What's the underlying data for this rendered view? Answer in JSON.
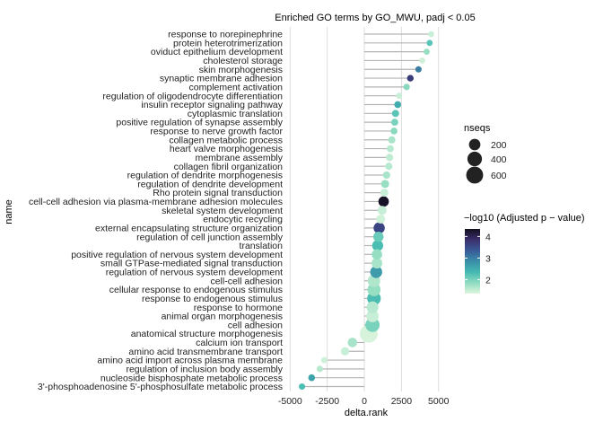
{
  "chart_data": {
    "type": "lollipop",
    "title": "Enriched GO terms by GO_MWU, padj < 0.05",
    "xlabel": "delta.rank",
    "ylabel": "name",
    "xlim": [
      -5200,
      5500
    ],
    "xticks": [
      -5000,
      -2500,
      0,
      2500,
      5000
    ],
    "xtick_labels": [
      "-5000",
      "-2500",
      "0",
      "2500",
      "5000"
    ],
    "grid": true,
    "size_legend": {
      "title": "nseqs",
      "labels": [
        "200",
        "400",
        "600"
      ],
      "values": [
        200,
        400,
        600
      ]
    },
    "color_legend": {
      "title": "−log10 (Adjusted p − value)",
      "labels": [
        "2",
        "3",
        "4"
      ],
      "values": [
        2,
        3,
        4
      ],
      "range": [
        1.35,
        4.35
      ],
      "colors": [
        "#dff5df",
        "#8fdcc0",
        "#44b9b2",
        "#3a8ea8",
        "#3a5a98",
        "#3a2f6c",
        "#140f1f"
      ]
    },
    "terms": [
      {
        "name": "response to norepinephrine",
        "x": 4500,
        "nseqs": 14,
        "neglog10p": 1.5
      },
      {
        "name": "protein heterotrimerization",
        "x": 4400,
        "nseqs": 16,
        "neglog10p": 2.2
      },
      {
        "name": "oviduct epithelium development",
        "x": 4200,
        "nseqs": 16,
        "neglog10p": 1.8
      },
      {
        "name": "cholesterol storage",
        "x": 3900,
        "nseqs": 14,
        "neglog10p": 1.45
      },
      {
        "name": "skin morphogenesis",
        "x": 3650,
        "nseqs": 20,
        "neglog10p": 3.0
      },
      {
        "name": "synaptic membrane adhesion",
        "x": 3100,
        "nseqs": 26,
        "neglog10p": 3.7
      },
      {
        "name": "complement activation",
        "x": 2850,
        "nseqs": 22,
        "neglog10p": 1.9
      },
      {
        "name": "regulation of oligodendrocyte differentiation",
        "x": 2350,
        "nseqs": 18,
        "neglog10p": 1.5
      },
      {
        "name": "insulin receptor signaling pathway",
        "x": 2250,
        "nseqs": 30,
        "neglog10p": 2.5
      },
      {
        "name": "cytoplasmic translation",
        "x": 2100,
        "nseqs": 36,
        "neglog10p": 2.2
      },
      {
        "name": "positive regulation of synapse assembly",
        "x": 2050,
        "nseqs": 34,
        "neglog10p": 2.0
      },
      {
        "name": "response to nerve growth factor",
        "x": 2000,
        "nseqs": 30,
        "neglog10p": 1.9
      },
      {
        "name": "collagen metabolic process",
        "x": 1850,
        "nseqs": 38,
        "neglog10p": 1.7
      },
      {
        "name": "heart valve morphogenesis",
        "x": 1750,
        "nseqs": 36,
        "neglog10p": 1.6
      },
      {
        "name": "membrane assembly",
        "x": 1700,
        "nseqs": 40,
        "neglog10p": 1.55
      },
      {
        "name": "collagen fibril organization",
        "x": 1650,
        "nseqs": 40,
        "neglog10p": 1.6
      },
      {
        "name": "regulation of dendrite morphogenesis",
        "x": 1500,
        "nseqs": 42,
        "neglog10p": 1.7
      },
      {
        "name": "regulation of dendrite development",
        "x": 1400,
        "nseqs": 60,
        "neglog10p": 1.8
      },
      {
        "name": "Rho protein signal transduction",
        "x": 1350,
        "nseqs": 55,
        "neglog10p": 1.5
      },
      {
        "name": "cell-cell adhesion via plasma-membrane adhesion molecules",
        "x": 1300,
        "nseqs": 150,
        "neglog10p": 4.3
      },
      {
        "name": "skeletal system development",
        "x": 1200,
        "nseqs": 90,
        "neglog10p": 1.5
      },
      {
        "name": "endocytic recycling",
        "x": 1100,
        "nseqs": 90,
        "neglog10p": 1.45
      },
      {
        "name": "external encapsulating structure organization",
        "x": 1000,
        "nseqs": 190,
        "neglog10p": 3.6
      },
      {
        "name": "regulation of cell junction assembly",
        "x": 950,
        "nseqs": 140,
        "neglog10p": 2.1
      },
      {
        "name": "translation",
        "x": 900,
        "nseqs": 180,
        "neglog10p": 2.3
      },
      {
        "name": "positive regulation of nervous system development",
        "x": 850,
        "nseqs": 150,
        "neglog10p": 1.8
      },
      {
        "name": "small GTPase-mediated signal transduction",
        "x": 850,
        "nseqs": 160,
        "neglog10p": 1.7
      },
      {
        "name": "regulation of nervous system development",
        "x": 800,
        "nseqs": 230,
        "neglog10p": 2.7
      },
      {
        "name": "cell-cell adhesion",
        "x": 650,
        "nseqs": 260,
        "neglog10p": 1.65
      },
      {
        "name": "cellular response to endogenous stimulus",
        "x": 650,
        "nseqs": 300,
        "neglog10p": 1.8
      },
      {
        "name": "response to endogenous stimulus",
        "x": 650,
        "nseqs": 330,
        "neglog10p": 2.3
      },
      {
        "name": "response to hormone",
        "x": 550,
        "nseqs": 220,
        "neglog10p": 1.6
      },
      {
        "name": "animal organ morphogenesis",
        "x": 550,
        "nseqs": 250,
        "neglog10p": 1.5
      },
      {
        "name": "cell adhesion",
        "x": 550,
        "nseqs": 380,
        "neglog10p": 2.0
      },
      {
        "name": "anatomical structure morphogenesis",
        "x": 300,
        "nseqs": 700,
        "neglog10p": 1.4
      },
      {
        "name": "calcium ion transport",
        "x": -800,
        "nseqs": 110,
        "neglog10p": 1.7
      },
      {
        "name": "amino acid transmembrane transport",
        "x": -1300,
        "nseqs": 70,
        "neglog10p": 1.5
      },
      {
        "name": "amino acid import across plasma membrane",
        "x": -2700,
        "nseqs": 20,
        "neglog10p": 1.45
      },
      {
        "name": "regulation of inclusion body assembly",
        "x": -3000,
        "nseqs": 22,
        "neglog10p": 1.6
      },
      {
        "name": "nucleoside bisphosphate metabolic process",
        "x": -3550,
        "nseqs": 28,
        "neglog10p": 2.6
      },
      {
        "name": "3'-phosphoadenosine 5'-phosphosulfate metabolic process",
        "x": -4200,
        "nseqs": 20,
        "neglog10p": 2.3
      }
    ]
  }
}
